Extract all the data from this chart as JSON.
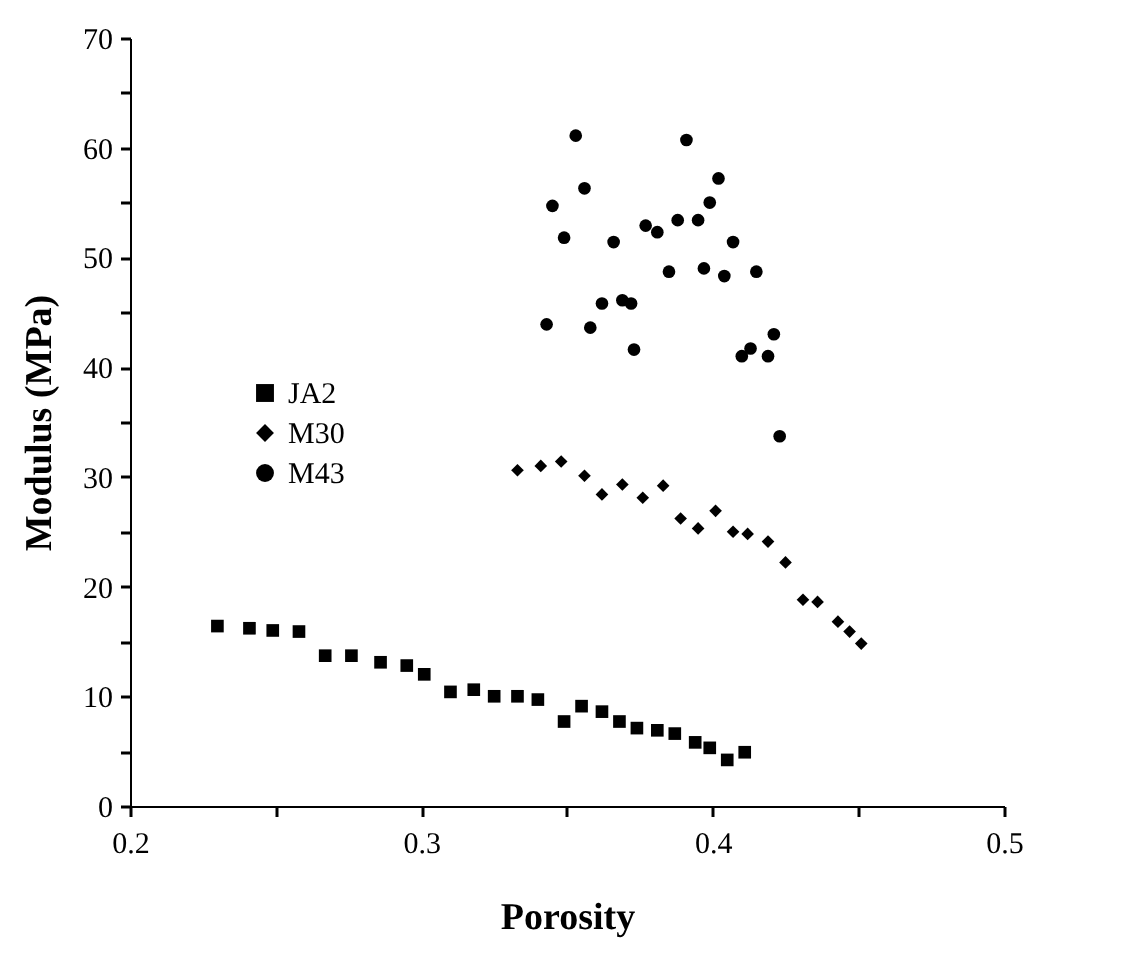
{
  "chart_data": {
    "type": "scatter",
    "xlabel": "Porosity",
    "ylabel": "Modulus (MPa)",
    "xlim": [
      0.2,
      0.5
    ],
    "ylim": [
      0,
      70
    ],
    "xticks": [
      0.2,
      {
        "value": 0.25,
        "label": null
      },
      0.3,
      {
        "value": 0.35,
        "label": null
      },
      0.4,
      {
        "value": 0.45,
        "label": null
      },
      0.5
    ],
    "yticks": [
      0,
      {
        "value": 5,
        "label": null
      },
      10,
      {
        "value": 15,
        "label": null
      },
      20,
      {
        "value": 25,
        "label": null
      },
      30,
      {
        "value": 35,
        "label": null
      },
      40,
      {
        "value": 45,
        "label": null
      },
      50,
      {
        "value": 55,
        "label": null
      },
      60,
      {
        "value": 65,
        "label": null
      },
      70
    ],
    "grid": false,
    "legend": "left",
    "series": [
      {
        "name": "JA2",
        "color": "#000000",
        "marker": "square",
        "x": [
          0.23,
          0.241,
          0.249,
          0.258,
          0.267,
          0.276,
          0.286,
          0.295,
          0.301,
          0.31,
          0.318,
          0.325,
          0.333,
          0.34,
          0.349,
          0.355,
          0.362,
          0.368,
          0.374,
          0.381,
          0.387,
          0.394,
          0.399,
          0.405,
          0.411
        ],
        "values": [
          16.4,
          16.2,
          16.0,
          15.9,
          13.7,
          13.7,
          13.1,
          12.8,
          12.0,
          10.4,
          10.6,
          10.0,
          10.0,
          9.7,
          7.7,
          9.1,
          8.6,
          7.7,
          7.1,
          6.9,
          6.6,
          5.8,
          5.3,
          4.2,
          4.9
        ]
      },
      {
        "name": "M30",
        "color": "#000000",
        "marker": "diamond",
        "x": [
          0.333,
          0.341,
          0.348,
          0.356,
          0.362,
          0.369,
          0.376,
          0.383,
          0.389,
          0.395,
          0.401,
          0.407,
          0.412,
          0.419,
          0.425,
          0.431,
          0.436,
          0.443,
          0.447,
          0.451
        ],
        "values": [
          30.6,
          31.0,
          31.4,
          30.1,
          28.4,
          29.3,
          28.1,
          29.2,
          26.2,
          25.3,
          26.9,
          25.0,
          24.8,
          24.1,
          22.2,
          18.8,
          18.6,
          16.8,
          15.9,
          14.8
        ]
      },
      {
        "name": "M43",
        "color": "#000000",
        "marker": "circle",
        "x": [
          0.353,
          0.391,
          0.356,
          0.402,
          0.345,
          0.399,
          0.377,
          0.381,
          0.388,
          0.395,
          0.349,
          0.366,
          0.407,
          0.385,
          0.397,
          0.404,
          0.415,
          0.362,
          0.369,
          0.372,
          0.343,
          0.358,
          0.373,
          0.421,
          0.41,
          0.413,
          0.419,
          0.423
        ],
        "values": [
          61.1,
          60.7,
          56.3,
          57.2,
          54.7,
          55.0,
          52.9,
          52.3,
          53.4,
          53.4,
          51.8,
          51.4,
          51.4,
          48.7,
          49.0,
          48.3,
          48.7,
          45.8,
          46.1,
          45.8,
          43.9,
          43.6,
          41.6,
          43.0,
          41.0,
          41.7,
          41.0,
          33.7
        ]
      }
    ]
  }
}
